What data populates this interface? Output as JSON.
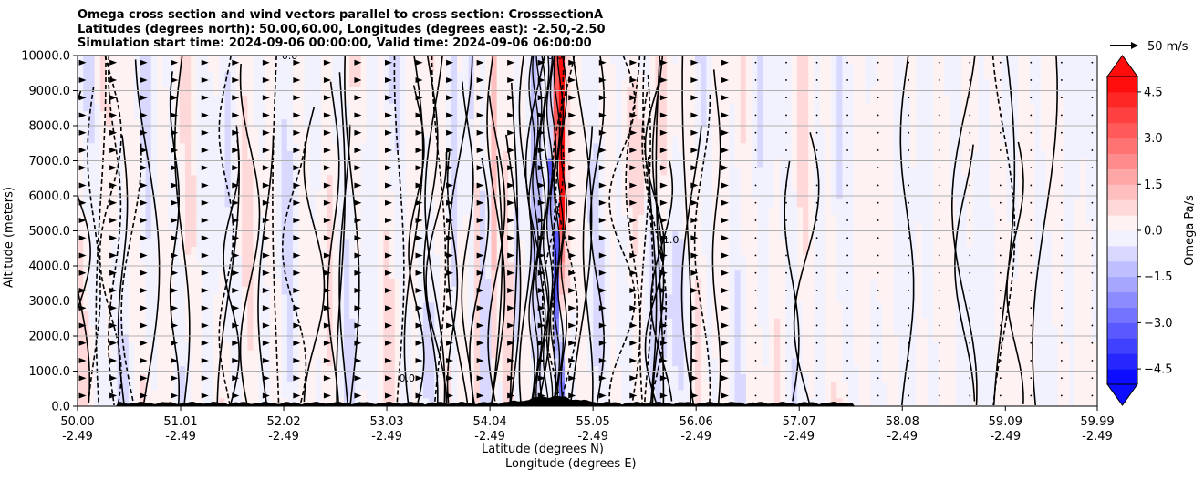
{
  "title_lines": [
    "Omega cross section and wind vectors parallel to cross section: CrosssectionA",
    "Latitudes (degrees north): 50.00,60.00, Longitudes (degrees east): -2.50,-2.50",
    "Simulation start time: 2024-09-06 00:00:00, Valid time: 2024-09-06 06:00:00"
  ],
  "chart_data": {
    "type": "heatmap",
    "title": "Omega cross section and wind vectors parallel to cross section: CrosssectionA",
    "ylabel": "Altitude (meters)",
    "xlabel_lat": "Latitude (degrees N)",
    "xlabel_lon": "Longitude (degrees E)",
    "ylim": [
      0,
      10000
    ],
    "yticks": [
      {
        "value": 0,
        "label": "0.0"
      },
      {
        "value": 1000,
        "label": "1000.0"
      },
      {
        "value": 2000,
        "label": "2000.0"
      },
      {
        "value": 3000,
        "label": "3000.0"
      },
      {
        "value": 4000,
        "label": "4000.0"
      },
      {
        "value": 5000,
        "label": "5000.0"
      },
      {
        "value": 6000,
        "label": "6000.0"
      },
      {
        "value": 7000,
        "label": "7000.0"
      },
      {
        "value": 8000,
        "label": "8000.0"
      },
      {
        "value": 9000,
        "label": "9000.0"
      },
      {
        "value": 10000,
        "label": "10000.0"
      }
    ],
    "xlim": [
      50.0,
      59.99
    ],
    "xticks": [
      {
        "value": 50.0,
        "lat": "50.00",
        "lon": "-2.49"
      },
      {
        "value": 51.01,
        "lat": "51.01",
        "lon": "-2.49"
      },
      {
        "value": 52.02,
        "lat": "52.02",
        "lon": "-2.49"
      },
      {
        "value": 53.03,
        "lat": "53.03",
        "lon": "-2.49"
      },
      {
        "value": 54.04,
        "lat": "54.04",
        "lon": "-2.49"
      },
      {
        "value": 55.05,
        "lat": "55.05",
        "lon": "-2.49"
      },
      {
        "value": 56.06,
        "lat": "56.06",
        "lon": "-2.49"
      },
      {
        "value": 57.07,
        "lat": "57.07",
        "lon": "-2.49"
      },
      {
        "value": 58.08,
        "lat": "58.08",
        "lon": "-2.49"
      },
      {
        "value": 59.09,
        "lat": "59.09",
        "lon": "-2.49"
      },
      {
        "value": 59.99,
        "lat": "59.99",
        "lon": "-2.49"
      }
    ],
    "colorbar": {
      "label": "Omega Pa/s",
      "min": -5.0,
      "max": 5.0,
      "extend": "both",
      "ticks": [
        {
          "value": 4.5,
          "label": "4.5"
        },
        {
          "value": 3.0,
          "label": "3.0"
        },
        {
          "value": 1.5,
          "label": "1.5"
        },
        {
          "value": 0.0,
          "label": "0.0"
        },
        {
          "value": -1.5,
          "label": "−1.5"
        },
        {
          "value": -3.0,
          "label": "−3.0"
        },
        {
          "value": -4.5,
          "label": "−4.5"
        }
      ]
    },
    "quiver_key": {
      "label": "50 m/s",
      "value": 50
    },
    "contour_labels": [
      {
        "x": 55.7,
        "y": 4650,
        "text": "-1.0"
      },
      {
        "x": 53.15,
        "y": 700,
        "text": "0.0"
      },
      {
        "x": 52.0,
        "y": 9900,
        "text": "0.0"
      },
      {
        "x": 54.6,
        "y": 9900,
        "text": "0.0"
      }
    ],
    "features": [
      {
        "name": "strong-ascent-band",
        "x": 54.5,
        "sign": "negative",
        "peak": -5.0
      },
      {
        "name": "strong-descent-band",
        "x": 54.75,
        "sign": "positive",
        "peak": 5.0
      }
    ]
  },
  "colors": {
    "positive": "#ff0000",
    "negative": "#0000ff",
    "neutral": "#ffffff",
    "terrain": "#000000",
    "grid": "#b0b0b0"
  }
}
